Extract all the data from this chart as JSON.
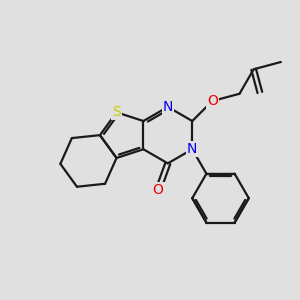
{
  "background_color": "#e0e0e0",
  "bond_color": "#1a1a1a",
  "atom_colors": {
    "S": "#cccc00",
    "N": "#0000ee",
    "O": "#ee0000",
    "C": "#1a1a1a"
  },
  "atom_bg_color": "#e0e0e0",
  "bond_width": 1.6,
  "font_size_atoms": 10,
  "fig_bg": "#e0e0e0",
  "xlim": [
    0,
    10
  ],
  "ylim": [
    0,
    10
  ]
}
